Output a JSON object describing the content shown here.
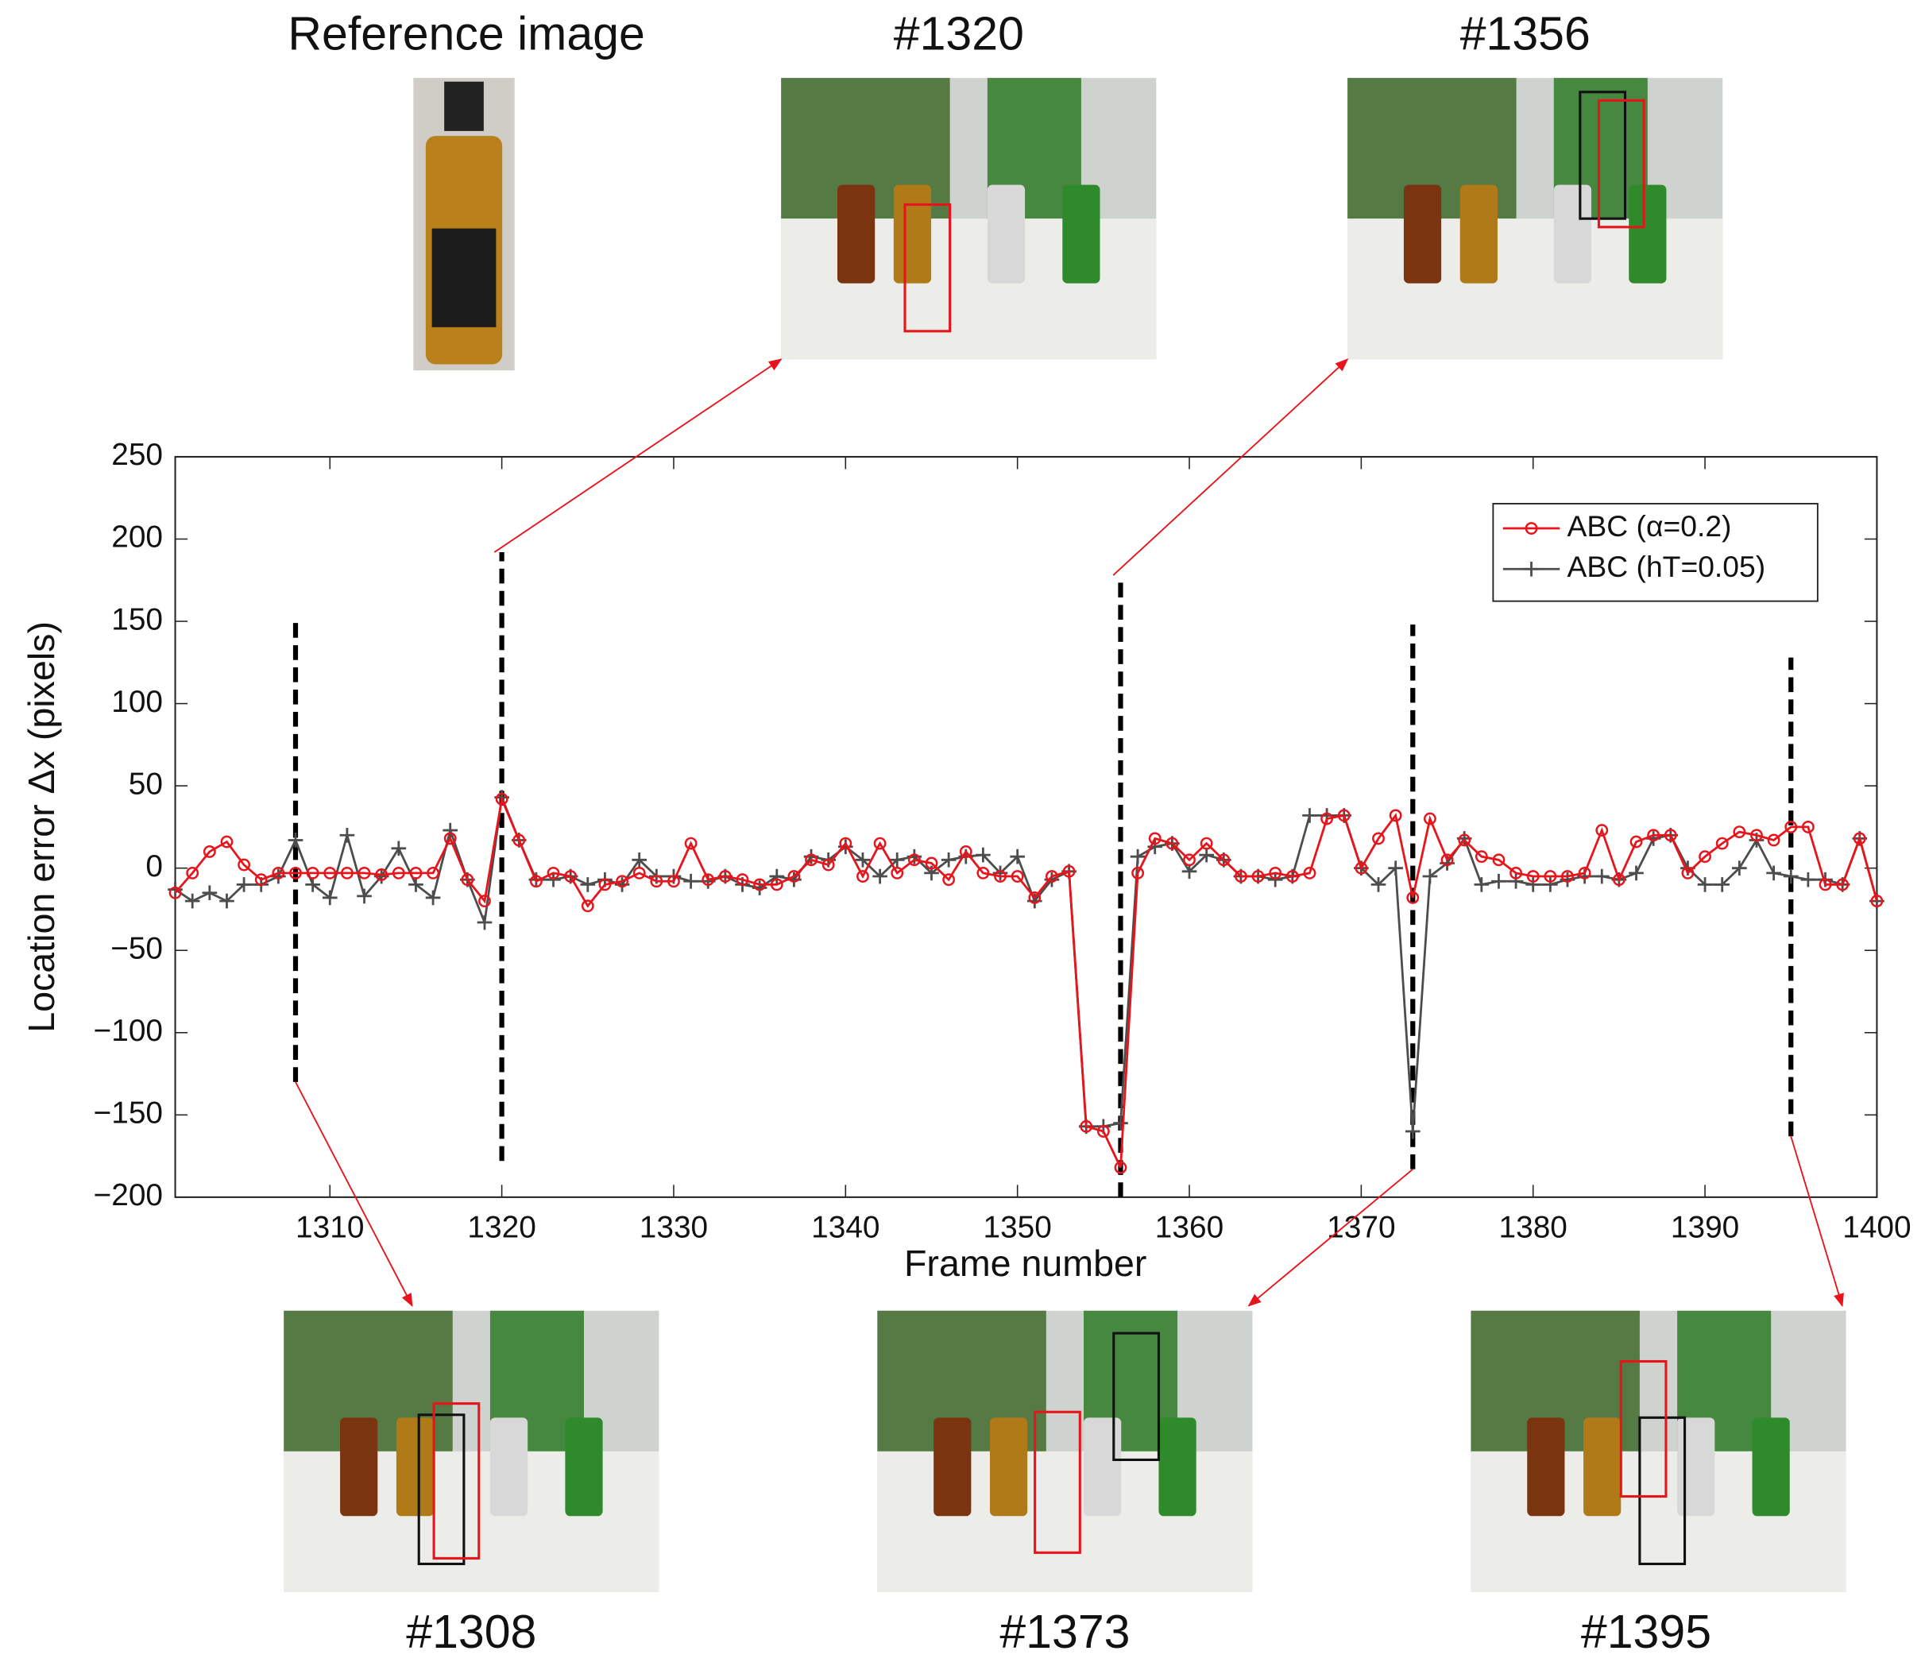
{
  "chart_data": {
    "type": "line",
    "xlabel": "Frame number",
    "ylabel": "Location error Δx (pixels)",
    "reference_label": "Reference image",
    "x": [
      1301,
      1302,
      1303,
      1304,
      1305,
      1306,
      1307,
      1308,
      1309,
      1310,
      1311,
      1312,
      1313,
      1314,
      1315,
      1316,
      1317,
      1318,
      1319,
      1320,
      1321,
      1322,
      1323,
      1324,
      1325,
      1326,
      1327,
      1328,
      1329,
      1330,
      1331,
      1332,
      1333,
      1334,
      1335,
      1336,
      1337,
      1338,
      1339,
      1340,
      1341,
      1342,
      1343,
      1344,
      1345,
      1346,
      1347,
      1348,
      1349,
      1350,
      1351,
      1352,
      1353,
      1354,
      1355,
      1356,
      1357,
      1358,
      1359,
      1360,
      1361,
      1362,
      1363,
      1364,
      1365,
      1366,
      1367,
      1368,
      1369,
      1370,
      1371,
      1372,
      1373,
      1374,
      1375,
      1376,
      1377,
      1378,
      1379,
      1380,
      1381,
      1382,
      1383,
      1384,
      1385,
      1386,
      1387,
      1388,
      1389,
      1390,
      1391,
      1392,
      1393,
      1394,
      1395,
      1396,
      1397,
      1398,
      1399,
      1400
    ],
    "series": [
      {
        "name": "ABC (α=0.2)",
        "color": "#e8141b",
        "marker": "circle",
        "values": [
          -15,
          -3,
          10,
          16,
          2,
          -7,
          -3,
          -3,
          -3,
          -3,
          -3,
          -3,
          -4,
          -3,
          -3,
          -3,
          18,
          -7,
          -20,
          42,
          17,
          -8,
          -3,
          -5,
          -23,
          -10,
          -8,
          -3,
          -8,
          -8,
          15,
          -7,
          -5,
          -7,
          -10,
          -10,
          -5,
          5,
          2,
          15,
          -5,
          15,
          -3,
          5,
          3,
          -7,
          10,
          -3,
          -5,
          -5,
          -18,
          -5,
          -2,
          -157,
          -160,
          -182,
          -3,
          18,
          15,
          5,
          15,
          5,
          -5,
          -5,
          -3,
          -5,
          -3,
          30,
          32,
          0,
          18,
          32,
          -18,
          30,
          5,
          17,
          7,
          5,
          -3,
          -5,
          -5,
          -5,
          -3,
          23,
          -7,
          16,
          20,
          20,
          -3,
          7,
          15,
          22,
          20,
          17,
          25,
          25,
          -10,
          -10,
          18,
          -20
        ]
      },
      {
        "name": "ABC (hT=0.05)",
        "color": "#4d4d4d",
        "marker": "plus",
        "values": [
          -13,
          -20,
          -15,
          -20,
          -10,
          -10,
          -5,
          17,
          -10,
          -18,
          20,
          -17,
          -5,
          12,
          -10,
          -18,
          23,
          -7,
          -33,
          43,
          17,
          -7,
          -7,
          -5,
          -10,
          -7,
          -10,
          5,
          -5,
          -5,
          -8,
          -8,
          -5,
          -10,
          -12,
          -5,
          -7,
          7,
          5,
          13,
          5,
          -5,
          5,
          7,
          -3,
          5,
          7,
          8,
          -3,
          7,
          -20,
          -7,
          -2,
          -157,
          -157,
          -155,
          7,
          13,
          15,
          -2,
          8,
          5,
          -5,
          -5,
          -7,
          -5,
          32,
          32,
          32,
          0,
          -10,
          0,
          -160,
          -5,
          3,
          18,
          -10,
          -8,
          -8,
          -10,
          -10,
          -7,
          -5,
          -5,
          -7,
          -3,
          18,
          20,
          0,
          -10,
          -10,
          0,
          17,
          -3,
          -5,
          -7,
          -7,
          -10,
          18,
          -20
        ]
      }
    ],
    "markers": [
      {
        "x": 1308,
        "y": [
          -130,
          150
        ],
        "label": "#1308"
      },
      {
        "x": 1320,
        "y": [
          -178,
          192
        ],
        "label": "#1320"
      },
      {
        "x": 1356,
        "y": [
          -200,
          178
        ],
        "label": "#1356"
      },
      {
        "x": 1373,
        "y": [
          -183,
          148
        ],
        "label": "#1373"
      },
      {
        "x": 1395,
        "y": [
          -163,
          128
        ],
        "label": "#1395"
      }
    ],
    "xlim": [
      1301,
      1400
    ],
    "xticks": [
      1310,
      1320,
      1330,
      1340,
      1350,
      1360,
      1370,
      1380,
      1390,
      1400
    ],
    "ylim": [
      -200,
      250
    ],
    "yticks": [
      {
        "value": -200,
        "label": "−200"
      },
      {
        "value": -150,
        "label": "−150"
      },
      {
        "value": -100,
        "label": "−100"
      },
      {
        "value": -50,
        "label": "−50"
      },
      0,
      50,
      100,
      150,
      200,
      250
    ],
    "grid": false,
    "legend": "upper right"
  }
}
